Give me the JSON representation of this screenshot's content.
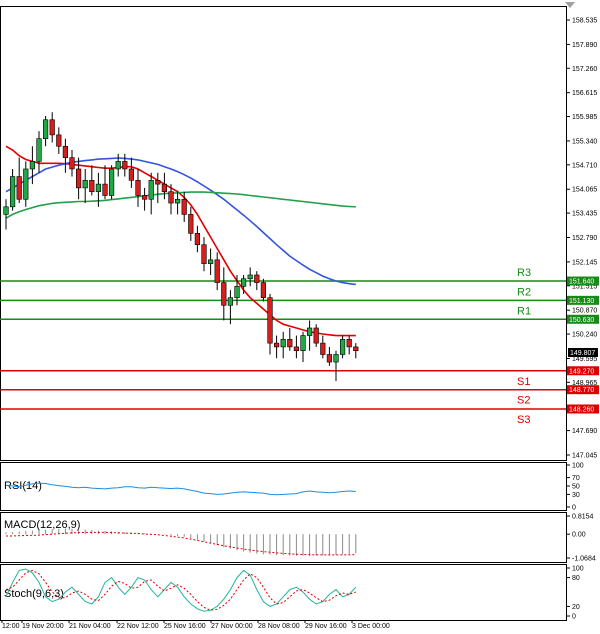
{
  "chart_data": {
    "type": "candlestick",
    "title": "",
    "price_axis": {
      "ticks": [
        "158.535",
        "157.890",
        "157.260",
        "156.615",
        "155.985",
        "155.340",
        "154.710",
        "154.065",
        "153.435",
        "152.790",
        "152.145",
        "151.515",
        "150.870",
        "150.240",
        "149.595",
        "148.965",
        "147.690",
        "147.045"
      ],
      "range": [
        147.045,
        158.535
      ]
    },
    "time_axis": {
      "labels": [
        "12:00",
        "19 Nov 20:00",
        "21 Nov 04:00",
        "22 Nov 12:00",
        "25 Nov 16:00",
        "27 Nov 00:00",
        "28 Nov 08:00",
        "29 Nov 16:00",
        "3 Dec 00:00"
      ]
    },
    "candles": [
      [
        153.4,
        153.8,
        153.0,
        153.6
      ],
      [
        153.6,
        154.6,
        153.5,
        154.4
      ],
      [
        154.4,
        154.9,
        153.7,
        153.8
      ],
      [
        153.8,
        154.8,
        153.6,
        154.6
      ],
      [
        154.6,
        155.2,
        154.2,
        154.8
      ],
      [
        154.8,
        155.6,
        154.5,
        155.4
      ],
      [
        155.4,
        156.0,
        155.2,
        155.9
      ],
      [
        155.9,
        156.1,
        155.3,
        155.5
      ],
      [
        155.5,
        155.7,
        155.0,
        155.2
      ],
      [
        155.2,
        155.4,
        154.5,
        154.9
      ],
      [
        154.9,
        155.1,
        154.4,
        154.6
      ],
      [
        154.6,
        154.9,
        153.8,
        154.1
      ],
      [
        154.1,
        154.6,
        153.7,
        154.3
      ],
      [
        154.3,
        154.7,
        153.9,
        154.0
      ],
      [
        154.0,
        154.5,
        153.6,
        154.2
      ],
      [
        154.2,
        154.7,
        153.8,
        153.9
      ],
      [
        153.9,
        154.7,
        153.8,
        154.6
      ],
      [
        154.6,
        155.0,
        154.4,
        154.8
      ],
      [
        154.8,
        155.0,
        154.4,
        154.6
      ],
      [
        154.6,
        154.9,
        154.1,
        154.3
      ],
      [
        154.3,
        154.6,
        153.6,
        153.9
      ],
      [
        153.9,
        154.1,
        153.5,
        153.8
      ],
      [
        153.8,
        154.5,
        153.4,
        154.3
      ],
      [
        154.3,
        154.5,
        153.7,
        154.2
      ],
      [
        154.2,
        154.5,
        153.8,
        154.0
      ],
      [
        154.0,
        154.2,
        153.4,
        153.7
      ],
      [
        153.7,
        154.0,
        153.4,
        153.8
      ],
      [
        153.8,
        154.0,
        153.2,
        153.4
      ],
      [
        153.4,
        153.6,
        152.7,
        152.9
      ],
      [
        152.9,
        153.1,
        152.4,
        152.6
      ],
      [
        152.6,
        152.8,
        151.9,
        152.1
      ],
      [
        152.1,
        152.5,
        151.8,
        152.2
      ],
      [
        152.2,
        152.4,
        151.4,
        151.6
      ],
      [
        151.6,
        152.0,
        150.6,
        151.0
      ],
      [
        151.0,
        151.4,
        150.5,
        151.2
      ],
      [
        151.2,
        151.8,
        151.0,
        151.5
      ],
      [
        151.5,
        151.8,
        151.3,
        151.7
      ],
      [
        151.7,
        152.0,
        151.5,
        151.8
      ],
      [
        151.8,
        151.9,
        151.4,
        151.6
      ],
      [
        151.6,
        151.7,
        151.1,
        151.2
      ],
      [
        151.2,
        151.3,
        149.7,
        150.0
      ],
      [
        150.0,
        150.2,
        149.6,
        149.9
      ],
      [
        149.9,
        150.3,
        149.6,
        150.1
      ],
      [
        150.1,
        150.4,
        149.8,
        149.9
      ],
      [
        149.9,
        150.2,
        149.6,
        149.8
      ],
      [
        149.8,
        150.3,
        149.5,
        150.2
      ],
      [
        150.2,
        150.6,
        149.8,
        150.4
      ],
      [
        150.4,
        150.5,
        149.9,
        150.0
      ],
      [
        150.0,
        150.2,
        149.6,
        149.7
      ],
      [
        149.7,
        149.9,
        149.4,
        149.5
      ],
      [
        149.5,
        149.8,
        149.0,
        149.7
      ],
      [
        149.7,
        150.2,
        149.6,
        150.1
      ],
      [
        150.1,
        150.2,
        149.7,
        149.9
      ],
      [
        149.9,
        150.0,
        149.6,
        149.8
      ]
    ],
    "moving_averages": [
      {
        "color": "#e00000",
        "values": [
          155.2,
          155.1,
          154.95,
          154.85,
          154.8,
          154.75,
          154.75,
          154.75,
          154.75,
          154.74,
          154.72,
          154.7,
          154.68,
          154.66,
          154.64,
          154.62,
          154.62,
          154.64,
          154.66,
          154.66,
          154.6,
          154.5,
          154.4,
          154.3,
          154.2,
          154.1,
          154.0,
          153.85,
          153.65,
          153.4,
          153.1,
          152.8,
          152.5,
          152.2,
          151.9,
          151.65,
          151.4,
          151.2,
          151.05,
          150.9,
          150.75,
          150.6,
          150.5,
          150.45,
          150.4,
          150.35,
          150.3,
          150.27,
          150.24,
          150.22,
          150.2,
          150.2,
          150.2,
          150.2
        ]
      },
      {
        "color": "#3355dd",
        "values": [
          154.0,
          154.1,
          154.2,
          154.3,
          154.4,
          154.5,
          154.6,
          154.65,
          154.7,
          154.74,
          154.78,
          154.8,
          154.82,
          154.84,
          154.86,
          154.87,
          154.88,
          154.89,
          154.88,
          154.86,
          154.84,
          154.8,
          154.76,
          154.72,
          154.66,
          154.6,
          154.53,
          154.45,
          154.36,
          154.26,
          154.15,
          154.04,
          153.92,
          153.8,
          153.66,
          153.52,
          153.38,
          153.23,
          153.08,
          152.92,
          152.76,
          152.6,
          152.45,
          152.3,
          152.18,
          152.06,
          151.95,
          151.86,
          151.77,
          151.7,
          151.64,
          151.6,
          151.57,
          151.55
        ]
      },
      {
        "color": "#22a04a",
        "values": [
          153.3,
          153.4,
          153.47,
          153.53,
          153.58,
          153.63,
          153.66,
          153.69,
          153.71,
          153.72,
          153.73,
          153.74,
          153.74,
          153.75,
          153.76,
          153.77,
          153.79,
          153.81,
          153.83,
          153.85,
          153.87,
          153.89,
          153.91,
          153.93,
          153.95,
          153.96,
          153.97,
          153.98,
          153.99,
          153.99,
          153.99,
          153.98,
          153.97,
          153.96,
          153.95,
          153.94,
          153.92,
          153.9,
          153.88,
          153.86,
          153.84,
          153.82,
          153.8,
          153.78,
          153.76,
          153.74,
          153.72,
          153.7,
          153.68,
          153.66,
          153.64,
          153.62,
          153.61,
          153.6
        ]
      }
    ],
    "levels": [
      {
        "name": "R3",
        "value": 151.64,
        "label": "151.640",
        "color": "#178a17"
      },
      {
        "name": "R2",
        "value": 151.13,
        "label": "151.130",
        "color": "#178a17"
      },
      {
        "name": "R1",
        "value": 150.63,
        "label": "150.630",
        "color": "#178a17"
      },
      {
        "name": "S1",
        "value": 149.27,
        "label": "149.270",
        "color": "#dd0000"
      },
      {
        "name": "S2",
        "value": 148.77,
        "label": "148.770",
        "color": "#dd0000"
      },
      {
        "name": "S3",
        "value": 148.26,
        "label": "148.260",
        "color": "#dd0000"
      }
    ],
    "current_price": "149.807",
    "indicators": {
      "rsi": {
        "title": "RSI(14)",
        "ticks": [
          "100",
          "70",
          "50",
          "30",
          "0"
        ],
        "range": [
          0,
          100
        ],
        "color": "#1a8ee0",
        "values": [
          52,
          50,
          48,
          52,
          55,
          57,
          56,
          53,
          51,
          49,
          47,
          46,
          47,
          45,
          44,
          43,
          45,
          46,
          48,
          48,
          46,
          45,
          47,
          46,
          45,
          44,
          45,
          43,
          40,
          37,
          33,
          32,
          30,
          31,
          33,
          35,
          36,
          35,
          34,
          33,
          30,
          29,
          30,
          31,
          32,
          36,
          38,
          36,
          35,
          34,
          35,
          37,
          38,
          37
        ]
      },
      "macd": {
        "title": "MACD(12,26,9)",
        "ticks": [
          "0.8154",
          "0.00",
          "-1.0684"
        ],
        "range": [
          -1.0684,
          0.8154
        ],
        "bar_color": "#8a8a8a",
        "signal_color": "#dd0000",
        "bars": [
          0.08,
          0.1,
          0.12,
          0.14,
          0.16,
          0.18,
          0.2,
          0.22,
          0.24,
          0.25,
          0.24,
          0.22,
          0.2,
          0.18,
          0.16,
          0.14,
          0.12,
          0.1,
          0.09,
          0.08,
          0.06,
          0.04,
          0.02,
          0.0,
          -0.02,
          -0.05,
          -0.08,
          -0.12,
          -0.18,
          -0.25,
          -0.33,
          -0.42,
          -0.5,
          -0.58,
          -0.65,
          -0.72,
          -0.78,
          -0.83,
          -0.87,
          -0.9,
          -0.92,
          -0.94,
          -0.95,
          -0.96,
          -0.97,
          -0.97,
          -0.97,
          -0.96,
          -0.95,
          -0.93,
          -0.92,
          -0.9,
          -0.88,
          -0.86
        ],
        "signal": [
          -0.08,
          -0.08,
          -0.07,
          -0.06,
          -0.05,
          -0.04,
          -0.02,
          0.0,
          0.02,
          0.04,
          0.06,
          0.07,
          0.08,
          0.08,
          0.08,
          0.08,
          0.07,
          0.06,
          0.05,
          0.04,
          0.03,
          0.01,
          -0.01,
          -0.03,
          -0.06,
          -0.09,
          -0.13,
          -0.17,
          -0.22,
          -0.28,
          -0.34,
          -0.4,
          -0.46,
          -0.52,
          -0.57,
          -0.62,
          -0.67,
          -0.71,
          -0.75,
          -0.78,
          -0.81,
          -0.84,
          -0.86,
          -0.88,
          -0.9,
          -0.91,
          -0.92,
          -0.93,
          -0.93,
          -0.93,
          -0.93,
          -0.93,
          -0.92,
          -0.92
        ]
      },
      "stoch": {
        "title": "Stoch(9,6,3)",
        "ticks": [
          "100",
          "80",
          "20",
          "0"
        ],
        "range": [
          0,
          100
        ],
        "k_color": "#22b59a",
        "d_color": "#dd0000",
        "k": [
          40,
          70,
          95,
          98,
          90,
          70,
          40,
          30,
          35,
          50,
          60,
          45,
          30,
          25,
          40,
          70,
          80,
          60,
          45,
          60,
          80,
          75,
          55,
          40,
          55,
          70,
          60,
          40,
          25,
          15,
          10,
          12,
          20,
          35,
          55,
          80,
          95,
          85,
          55,
          30,
          20,
          25,
          40,
          55,
          60,
          50,
          35,
          25,
          30,
          45,
          55,
          40,
          45,
          60
        ],
        "d": [
          55,
          60,
          75,
          90,
          95,
          88,
          70,
          50,
          38,
          38,
          48,
          52,
          45,
          35,
          32,
          45,
          62,
          72,
          68,
          58,
          60,
          72,
          75,
          62,
          52,
          58,
          65,
          58,
          45,
          30,
          18,
          12,
          14,
          22,
          35,
          55,
          75,
          88,
          80,
          60,
          38,
          25,
          28,
          40,
          52,
          55,
          48,
          38,
          30,
          33,
          42,
          48,
          45,
          50
        ]
      }
    }
  }
}
